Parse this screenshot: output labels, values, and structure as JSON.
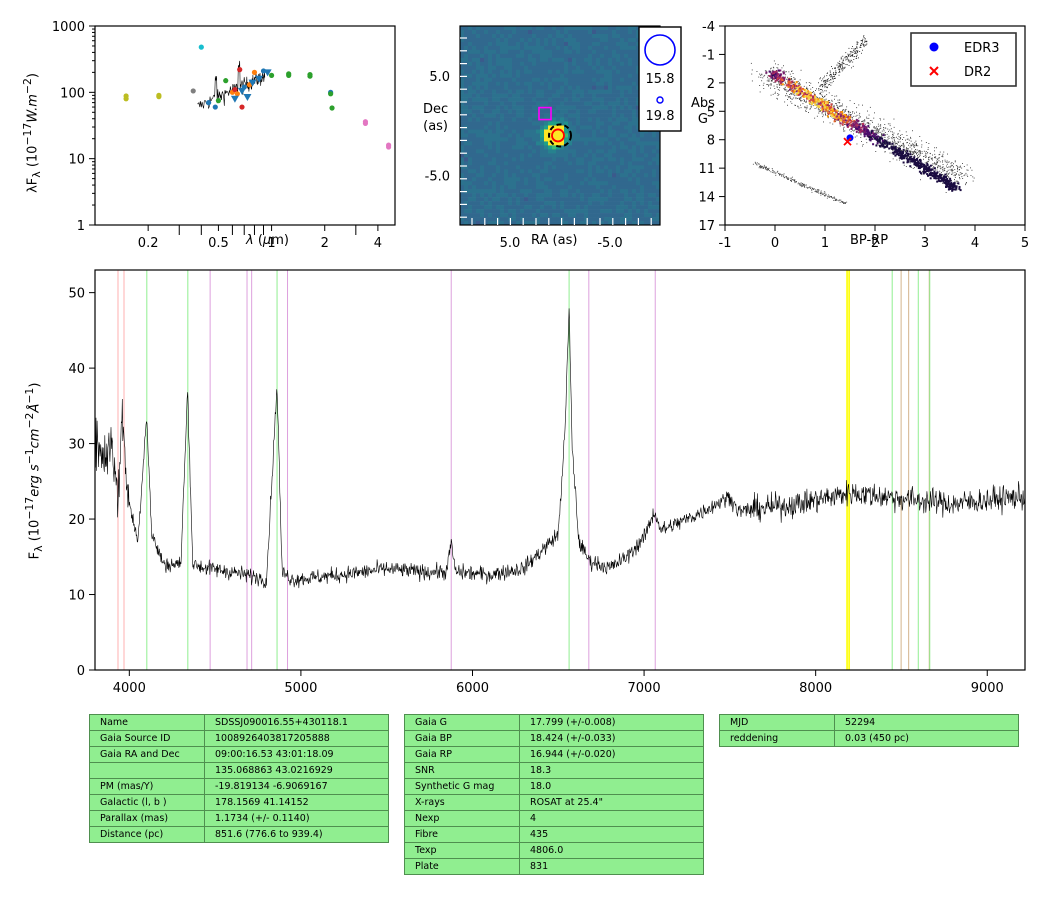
{
  "sed_panel": {
    "ylabel": "λF_λ (10^-17 W.m^-2)",
    "xlabel": "λ (μm)",
    "y_ticks": [
      "1",
      "10",
      "100",
      "1000"
    ],
    "x_ticks": [
      "0.2",
      "0.5",
      "1",
      "2",
      "4"
    ],
    "xlim": [
      0.1,
      5
    ],
    "ylim": [
      1,
      1000
    ]
  },
  "image_panel": {
    "ylabel_1": "Dec",
    "ylabel_2": "(as)",
    "xlabel": "RA (as)",
    "y_ticks": [
      "5.0",
      "-5.0"
    ],
    "x_ticks": [
      "5.0",
      "-5.0"
    ],
    "legend": [
      {
        "label": "15.8",
        "color": "#0000ff"
      },
      {
        "label": "19.8",
        "color": "#0000ff"
      }
    ]
  },
  "cmd_panel": {
    "ylabel_1": "Abs",
    "ylabel_2": "G",
    "xlabel": "BP-RP",
    "y_ticks": [
      "-4",
      "-1",
      "2",
      "5",
      "8",
      "11",
      "14",
      "17"
    ],
    "x_ticks": [
      "-1",
      "0",
      "1",
      "2",
      "3",
      "4",
      "5"
    ],
    "legend": [
      {
        "label": "EDR3",
        "color": "#0000ff",
        "marker": "dot"
      },
      {
        "label": "DR2",
        "color": "#ff0000",
        "marker": "x"
      }
    ]
  },
  "spectrum_panel": {
    "ylabel": "F_λ (10^-17 erg s^-1 cm^-2 Å^-1)",
    "y_ticks": [
      "0",
      "10",
      "20",
      "30",
      "40",
      "50"
    ],
    "x_ticks": [
      "4000",
      "5000",
      "6000",
      "7000",
      "8000",
      "9000"
    ]
  },
  "chart_data": [
    {
      "type": "scatter",
      "name": "sed",
      "log_x": true,
      "log_y": true,
      "xlim": [
        0.1,
        5
      ],
      "ylim": [
        1,
        1000
      ],
      "points": [
        {
          "x": 0.15,
          "y": 88,
          "color": "#bcbd22"
        },
        {
          "x": 0.15,
          "y": 80,
          "color": "#bcbd22"
        },
        {
          "x": 0.23,
          "y": 90,
          "color": "#bcbd22"
        },
        {
          "x": 0.23,
          "y": 86,
          "color": "#bcbd22"
        },
        {
          "x": 0.36,
          "y": 105,
          "color": "#7f7f7f"
        },
        {
          "x": 0.4,
          "y": 480,
          "color": "#17becf"
        },
        {
          "x": 0.44,
          "y": 70,
          "color": "#1f77b4"
        },
        {
          "x": 0.48,
          "y": 60,
          "color": "#1f77b4"
        },
        {
          "x": 0.5,
          "y": 75,
          "color": "#2ca02c"
        },
        {
          "x": 0.55,
          "y": 150,
          "color": "#2ca02c"
        },
        {
          "x": 0.6,
          "y": 100,
          "color": "#ff7f0e"
        },
        {
          "x": 0.62,
          "y": 110,
          "color": "#d62728"
        },
        {
          "x": 0.64,
          "y": 95,
          "color": "#ff7f0e"
        },
        {
          "x": 0.66,
          "y": 220,
          "color": "#d62728"
        },
        {
          "x": 0.68,
          "y": 60,
          "color": "#d62728"
        },
        {
          "x": 0.7,
          "y": 120,
          "color": "#1f77b4"
        },
        {
          "x": 0.75,
          "y": 130,
          "color": "#ff7f0e"
        },
        {
          "x": 0.8,
          "y": 200,
          "color": "#ff7f0e"
        },
        {
          "x": 0.9,
          "y": 210,
          "color": "#1f77b4"
        },
        {
          "x": 1.0,
          "y": 180,
          "color": "#2ca02c"
        },
        {
          "x": 1.25,
          "y": 190,
          "color": "#2ca02c"
        },
        {
          "x": 1.25,
          "y": 180,
          "color": "#2ca02c"
        },
        {
          "x": 1.65,
          "y": 185,
          "color": "#2ca02c"
        },
        {
          "x": 1.65,
          "y": 175,
          "color": "#2ca02c"
        },
        {
          "x": 2.16,
          "y": 100,
          "color": "#1f77b4"
        },
        {
          "x": 2.16,
          "y": 95,
          "color": "#2ca02c"
        },
        {
          "x": 2.2,
          "y": 58,
          "color": "#2ca02c"
        },
        {
          "x": 3.4,
          "y": 36,
          "color": "#e377c2"
        },
        {
          "x": 3.4,
          "y": 34,
          "color": "#e377c2"
        },
        {
          "x": 4.6,
          "y": 16,
          "color": "#e377c2"
        },
        {
          "x": 4.6,
          "y": 15,
          "color": "#e377c2"
        }
      ],
      "triangles": [
        {
          "x": 0.62,
          "y": 80,
          "color": "#1f77b4"
        },
        {
          "x": 0.68,
          "y": 105,
          "color": "#1f77b4"
        },
        {
          "x": 0.73,
          "y": 85,
          "color": "#1f77b4"
        },
        {
          "x": 0.78,
          "y": 140,
          "color": "#1f77b4"
        },
        {
          "x": 0.85,
          "y": 160,
          "color": "#1f77b4"
        },
        {
          "x": 0.95,
          "y": 200,
          "color": "#1f77b4"
        }
      ]
    },
    {
      "type": "heatmap",
      "name": "image",
      "xlim": [
        10,
        -10
      ],
      "ylim": [
        -10,
        10
      ],
      "source": {
        "x": 0.5,
        "y": -1.0
      },
      "markers": [
        {
          "kind": "square",
          "x": 1.5,
          "y": 1.2,
          "color": "#ff00ff"
        },
        {
          "kind": "circle-dashed",
          "x": 0.0,
          "y": -1.0,
          "color": "#000000"
        },
        {
          "kind": "circle",
          "x": 0.2,
          "y": -1.0,
          "color": "#ff0000"
        }
      ]
    },
    {
      "type": "scatter",
      "name": "cmd",
      "xlim": [
        -1,
        5
      ],
      "ylim": [
        17,
        -4
      ],
      "edr3": {
        "x": 1.5,
        "y": 7.8
      },
      "dr2": {
        "x": 1.45,
        "y": 8.2
      }
    },
    {
      "type": "line",
      "name": "spectrum",
      "xlim": [
        3800,
        9220
      ],
      "ylim": [
        0,
        53
      ],
      "continuum_points": [
        [
          3800,
          30
        ],
        [
          3860,
          28
        ],
        [
          3900,
          31
        ],
        [
          3930,
          22
        ],
        [
          3960,
          34
        ],
        [
          3975,
          28
        ],
        [
          4000,
          22
        ],
        [
          4050,
          17
        ],
        [
          4101,
          34
        ],
        [
          4130,
          18
        ],
        [
          4200,
          14
        ],
        [
          4300,
          14
        ],
        [
          4340,
          37
        ],
        [
          4370,
          14
        ],
        [
          4450,
          13.5
        ],
        [
          4600,
          13
        ],
        [
          4700,
          12.5
        ],
        [
          4800,
          12
        ],
        [
          4861,
          38
        ],
        [
          4890,
          13
        ],
        [
          4950,
          12
        ],
        [
          5100,
          12.3
        ],
        [
          5300,
          12.8
        ],
        [
          5500,
          13.4
        ],
        [
          5700,
          13
        ],
        [
          5850,
          13
        ],
        [
          5876,
          17
        ],
        [
          5900,
          13
        ],
        [
          6100,
          12.6
        ],
        [
          6300,
          13.5
        ],
        [
          6500,
          18
        ],
        [
          6540,
          32
        ],
        [
          6563,
          48
        ],
        [
          6580,
          30
        ],
        [
          6620,
          17
        ],
        [
          6680,
          14.5
        ],
        [
          6800,
          13.5
        ],
        [
          6900,
          15
        ],
        [
          7000,
          17.5
        ],
        [
          7060,
          21
        ],
        [
          7100,
          18.5
        ],
        [
          7300,
          20.5
        ],
        [
          7500,
          23
        ],
        [
          7550,
          21
        ],
        [
          7700,
          21.5
        ],
        [
          7900,
          22
        ],
        [
          8100,
          23
        ],
        [
          8200,
          23.5
        ],
        [
          8400,
          23
        ],
        [
          8600,
          22.5
        ],
        [
          8800,
          22
        ],
        [
          9000,
          22.5
        ],
        [
          9220,
          23
        ]
      ],
      "lines": [
        {
          "x": 3934,
          "color": "#ffb0b0"
        },
        {
          "x": 3969,
          "color": "#ffb0b0"
        },
        {
          "x": 4102,
          "color": "#90ee90"
        },
        {
          "x": 4341,
          "color": "#90ee90"
        },
        {
          "x": 4471,
          "color": "#dda0dd"
        },
        {
          "x": 4686,
          "color": "#dda0dd"
        },
        {
          "x": 4713,
          "color": "#dda0dd"
        },
        {
          "x": 4861,
          "color": "#90ee90"
        },
        {
          "x": 4922,
          "color": "#dda0dd"
        },
        {
          "x": 5876,
          "color": "#dda0dd"
        },
        {
          "x": 6563,
          "color": "#90ee90"
        },
        {
          "x": 6678,
          "color": "#dda0dd"
        },
        {
          "x": 7065,
          "color": "#dda0dd"
        },
        {
          "x": 8183,
          "color": "#ffff00"
        },
        {
          "x": 8195,
          "color": "#ffff00"
        },
        {
          "x": 8446,
          "color": "#90ee90"
        },
        {
          "x": 8498,
          "color": "#d2b48c"
        },
        {
          "x": 8542,
          "color": "#d2b48c"
        },
        {
          "x": 8598,
          "color": "#90ee90"
        },
        {
          "x": 8662,
          "color": "#d2b48c"
        },
        {
          "x": 8665,
          "color": "#90ee90"
        }
      ]
    }
  ],
  "tables": {
    "left": [
      [
        "Name",
        "SDSSJ090016.55+430118.1"
      ],
      [
        "Gaia Source ID",
        "1008926403817205888"
      ],
      [
        "Gaia RA and Dec",
        "09:00:16.53    43:01:18.09"
      ],
      [
        "",
        "135.068863    43.0216929"
      ],
      [
        "PM (mas/Y)",
        "-19.819134    -6.9069167"
      ],
      [
        "Galactic (l, b )",
        "178.1569    41.14152"
      ],
      [
        "Parallax (mas)",
        "1.1734 (+/- 0.1140)"
      ],
      [
        "Distance (pc)",
        "851.6 (776.6 to 939.4)"
      ]
    ],
    "middle": [
      [
        "Gaia G",
        "17.799 (+/-0.008)"
      ],
      [
        "Gaia BP",
        "18.424 (+/-0.033)"
      ],
      [
        "Gaia RP",
        "16.944 (+/-0.020)"
      ],
      [
        "SNR",
        "18.3"
      ],
      [
        "Synthetic G mag",
        "18.0"
      ],
      [
        "X-rays",
        "ROSAT at 25.4\""
      ],
      [
        "Nexp",
        "4"
      ],
      [
        "Fibre",
        "435"
      ],
      [
        "Texp",
        "4806.0"
      ],
      [
        "Plate",
        "831"
      ]
    ],
    "right": [
      [
        "MJD",
        "52294"
      ],
      [
        "reddening",
        "0.03 (450 pc)"
      ]
    ]
  }
}
